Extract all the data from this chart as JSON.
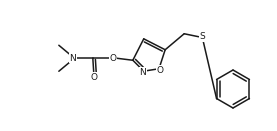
{
  "bg_color": "#ffffff",
  "line_color": "#1a1a1a",
  "line_width": 1.1,
  "figsize": [
    2.77,
    1.31
  ],
  "dpi": 100,
  "xlim": [
    0,
    277
  ],
  "ylim": [
    0,
    131
  ]
}
